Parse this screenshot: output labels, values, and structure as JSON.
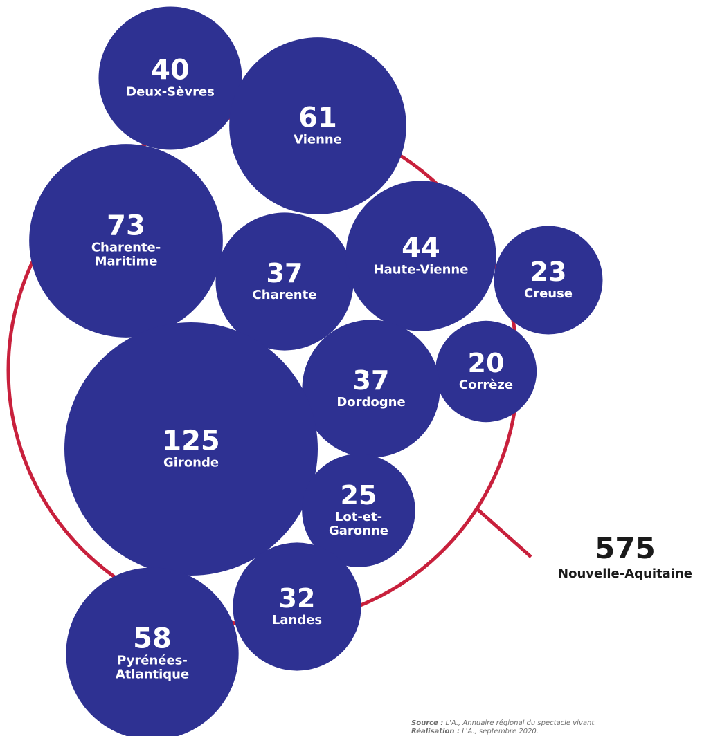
{
  "chart_data": {
    "type": "bubble",
    "bubbles": [
      {
        "name": "Deux-Sèvres",
        "value": 40,
        "lines": [
          "Deux-Sèvres"
        ]
      },
      {
        "name": "Vienne",
        "value": 61,
        "lines": [
          "Vienne"
        ]
      },
      {
        "name": "Charente-Maritime",
        "value": 73,
        "lines": [
          "Charente-",
          "Maritime"
        ]
      },
      {
        "name": "Charente",
        "value": 37,
        "lines": [
          "Charente"
        ]
      },
      {
        "name": "Haute-Vienne",
        "value": 44,
        "lines": [
          "Haute-Vienne"
        ]
      },
      {
        "name": "Creuse",
        "value": 23,
        "lines": [
          "Creuse"
        ]
      },
      {
        "name": "Corrèze",
        "value": 20,
        "lines": [
          "Corrèze"
        ]
      },
      {
        "name": "Dordogne",
        "value": 37,
        "lines": [
          "Dordogne"
        ]
      },
      {
        "name": "Gironde",
        "value": 125,
        "lines": [
          "Gironde"
        ]
      },
      {
        "name": "Lot-et-Garonne",
        "value": 25,
        "lines": [
          "Lot-et-",
          "Garonne"
        ]
      },
      {
        "name": "Landes",
        "value": 32,
        "lines": [
          "Landes"
        ]
      },
      {
        "name": "Pyrénées-Atlantique",
        "value": 58,
        "lines": [
          "Pyrénées-",
          "Atlantique"
        ]
      }
    ],
    "total": {
      "value": 575,
      "label": "Nouvelle-Aquitaine"
    },
    "colors": {
      "bubble": "#2e3192",
      "ring": "#c8203c",
      "text": "#ffffff",
      "total_text": "#1a1a1a"
    }
  },
  "footer": {
    "source_label": "Source :",
    "source_text": " L'A., Annuaire régional du spectacle vivant.",
    "credit_label": "Réalisation :",
    "credit_text": " L'A., septembre 2020."
  }
}
